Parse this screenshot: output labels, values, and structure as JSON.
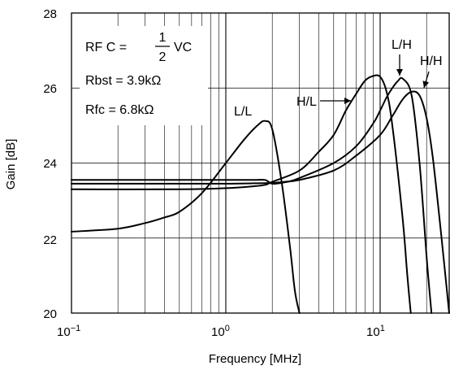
{
  "chart_data": {
    "type": "line",
    "xscale": "log",
    "xlim": [
      0.1,
      30
    ],
    "ylim": [
      20,
      28
    ],
    "grid": true,
    "xlabel": "Frequency [MHz]",
    "ylabel": "Gain [dB]",
    "xticks": [
      {
        "base": "10",
        "exp": "−1"
      },
      {
        "base": "10",
        "exp": "0"
      },
      {
        "base": "10",
        "exp": "1"
      }
    ],
    "yticks": [
      "20",
      "22",
      "24",
      "26",
      "28"
    ],
    "annotations": {
      "rfc_prefix": "RF C =",
      "frac_num": "1",
      "frac_den": "2",
      "rfc_suffix": "VC",
      "rbst": "Rbst = 3.9kΩ",
      "rfc": "Rfc = 6.8kΩ"
    },
    "series": [
      {
        "name": "L/L",
        "x": [
          0.1,
          0.2,
          0.3,
          0.4,
          0.5,
          0.7,
          1.0,
          1.3,
          1.6,
          1.8,
          2.0,
          2.3,
          2.6,
          2.8,
          3.0
        ],
        "y": [
          22.17,
          22.25,
          22.4,
          22.55,
          22.7,
          23.2,
          24.0,
          24.6,
          25.0,
          25.12,
          24.9,
          23.5,
          21.8,
          20.6,
          20.0
        ]
      },
      {
        "name": "H/L",
        "x": [
          0.1,
          0.5,
          1.0,
          1.5,
          1.8,
          2.0,
          3.0,
          4.0,
          5.0,
          6.0,
          7.0,
          8.0,
          9.0,
          10.0,
          11.0,
          12.0,
          14.0,
          15.0,
          15.8
        ],
        "y": [
          23.3,
          23.3,
          23.33,
          23.38,
          23.42,
          23.5,
          23.8,
          24.3,
          24.75,
          25.4,
          25.85,
          26.2,
          26.32,
          26.3,
          25.9,
          25.0,
          22.5,
          21.0,
          20.0
        ]
      },
      {
        "name": "L/H",
        "x": [
          0.1,
          0.5,
          1.0,
          1.5,
          1.8,
          2.0,
          2.5,
          3.0,
          5.0,
          7.0,
          9.0,
          10.0,
          11.0,
          12.0,
          13.0,
          14.0,
          16.0,
          18.0,
          20.0,
          21.5
        ],
        "y": [
          23.55,
          23.55,
          23.55,
          23.55,
          23.55,
          23.45,
          23.5,
          23.6,
          24.0,
          24.45,
          25.05,
          25.4,
          25.75,
          26.0,
          26.18,
          26.25,
          25.8,
          24.0,
          21.5,
          20.0
        ]
      },
      {
        "name": "H/H",
        "x": [
          0.1,
          0.5,
          1.0,
          1.5,
          2.0,
          2.4,
          3.0,
          5.0,
          7.0,
          10.0,
          12.0,
          14.0,
          16.0,
          18.0,
          20.0,
          22.0,
          25.0,
          28.0
        ],
        "y": [
          23.45,
          23.45,
          23.45,
          23.46,
          23.47,
          23.5,
          23.55,
          23.8,
          24.2,
          24.75,
          25.25,
          25.7,
          25.9,
          25.8,
          25.2,
          24.1,
          22.0,
          20.0
        ]
      }
    ],
    "series_label_arrows": [
      "H/L",
      "L/H",
      "H/H"
    ]
  }
}
